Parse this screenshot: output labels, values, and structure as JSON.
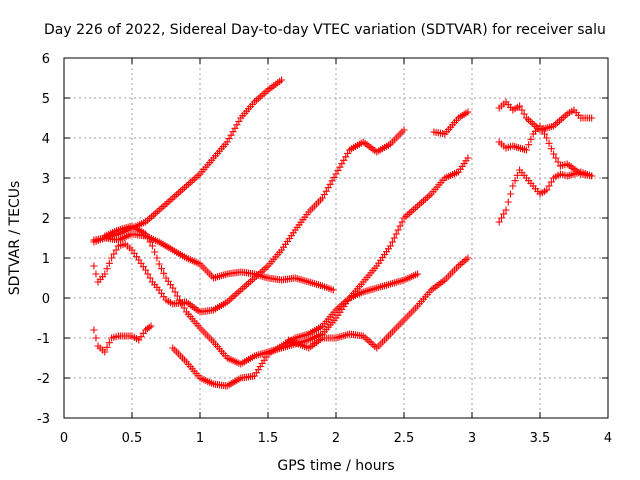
{
  "chart_data": {
    "type": "scatter",
    "title": "Day 226 of 2022, Sidereal Day-to-day VTEC variation (SDTVAR) for receiver salu",
    "xlabel": "GPS time / hours",
    "ylabel": "SDTVAR / TECUs",
    "xlim": [
      0,
      4
    ],
    "ylim": [
      -3,
      6
    ],
    "xticks": [
      "0",
      "0.5",
      "1",
      "1.5",
      "2",
      "2.5",
      "3",
      "3.5",
      "4"
    ],
    "yticks": [
      "-3",
      "-2",
      "-1",
      "0",
      "1",
      "2",
      "3",
      "4",
      "5",
      "6"
    ],
    "grid": true,
    "marker": "plus",
    "color": "#ff0000",
    "series": [
      {
        "points": [
          [
            0.22,
            1.4
          ],
          [
            0.3,
            1.5
          ],
          [
            0.4,
            1.6
          ],
          [
            0.5,
            1.75
          ],
          [
            0.6,
            1.9
          ],
          [
            0.7,
            2.2
          ],
          [
            0.8,
            2.5
          ],
          [
            0.9,
            2.8
          ],
          [
            1.0,
            3.1
          ],
          [
            1.1,
            3.5
          ],
          [
            1.2,
            3.9
          ],
          [
            1.3,
            4.5
          ],
          [
            1.4,
            4.9
          ],
          [
            1.5,
            5.2
          ],
          [
            1.6,
            5.45
          ]
        ]
      },
      {
        "points": [
          [
            0.22,
            1.45
          ],
          [
            0.3,
            1.5
          ],
          [
            0.4,
            1.45
          ],
          [
            0.5,
            1.6
          ],
          [
            0.6,
            1.55
          ],
          [
            0.7,
            1.4
          ],
          [
            0.8,
            1.2
          ],
          [
            0.9,
            1.0
          ],
          [
            1.0,
            0.85
          ],
          [
            1.1,
            0.5
          ],
          [
            1.2,
            0.6
          ],
          [
            1.3,
            0.65
          ],
          [
            1.4,
            0.6
          ],
          [
            1.5,
            0.5
          ],
          [
            1.6,
            0.45
          ],
          [
            1.7,
            0.5
          ],
          [
            1.8,
            0.4
          ],
          [
            1.9,
            0.3
          ],
          [
            1.98,
            0.2
          ]
        ]
      },
      {
        "points": [
          [
            0.22,
            0.8
          ],
          [
            0.25,
            0.4
          ],
          [
            0.3,
            0.6
          ],
          [
            0.35,
            1.0
          ],
          [
            0.4,
            1.3
          ],
          [
            0.45,
            1.35
          ],
          [
            0.5,
            1.2
          ],
          [
            0.55,
            0.95
          ],
          [
            0.6,
            0.7
          ],
          [
            0.65,
            0.4
          ],
          [
            0.7,
            0.2
          ],
          [
            0.75,
            -0.05
          ],
          [
            0.8,
            -0.15
          ],
          [
            0.9,
            -0.1
          ],
          [
            1.0,
            -0.35
          ],
          [
            1.1,
            -0.3
          ],
          [
            1.2,
            -0.1
          ],
          [
            1.3,
            0.2
          ],
          [
            1.4,
            0.5
          ],
          [
            1.5,
            0.8
          ],
          [
            1.6,
            1.2
          ],
          [
            1.7,
            1.7
          ],
          [
            1.8,
            2.15
          ],
          [
            1.9,
            2.5
          ],
          [
            2.0,
            3.1
          ],
          [
            2.1,
            3.7
          ],
          [
            2.2,
            3.9
          ],
          [
            2.3,
            3.65
          ],
          [
            2.4,
            3.85
          ],
          [
            2.5,
            4.2
          ]
        ]
      },
      {
        "points": [
          [
            0.3,
            1.55
          ],
          [
            0.4,
            1.7
          ],
          [
            0.5,
            1.8
          ],
          [
            0.6,
            1.6
          ],
          [
            0.65,
            1.3
          ],
          [
            0.7,
            0.85
          ],
          [
            0.75,
            0.5
          ],
          [
            0.8,
            0.25
          ],
          [
            0.85,
            -0.05
          ],
          [
            0.9,
            -0.35
          ],
          [
            1.0,
            -0.75
          ],
          [
            1.1,
            -1.1
          ],
          [
            1.2,
            -1.5
          ],
          [
            1.3,
            -1.65
          ],
          [
            1.4,
            -1.45
          ],
          [
            1.5,
            -1.35
          ],
          [
            1.6,
            -1.25
          ],
          [
            1.7,
            -1.15
          ],
          [
            1.8,
            -1.05
          ],
          [
            1.9,
            -0.9
          ],
          [
            2.0,
            -0.5
          ],
          [
            2.1,
            0.0
          ],
          [
            2.2,
            0.4
          ],
          [
            2.3,
            0.8
          ],
          [
            2.4,
            1.3
          ],
          [
            2.5,
            2.0
          ],
          [
            2.6,
            2.3
          ],
          [
            2.7,
            2.6
          ],
          [
            2.8,
            3.0
          ],
          [
            2.9,
            3.15
          ],
          [
            2.97,
            3.5
          ]
        ]
      },
      {
        "points": [
          [
            0.22,
            -0.8
          ],
          [
            0.25,
            -1.2
          ],
          [
            0.3,
            -1.35
          ],
          [
            0.35,
            -1.0
          ],
          [
            0.4,
            -0.95
          ],
          [
            0.5,
            -0.95
          ],
          [
            0.55,
            -1.05
          ],
          [
            0.6,
            -0.8
          ],
          [
            0.64,
            -0.7
          ]
        ]
      },
      {
        "points": [
          [
            0.8,
            -1.25
          ],
          [
            0.9,
            -1.6
          ],
          [
            1.0,
            -2.0
          ],
          [
            1.1,
            -2.15
          ],
          [
            1.2,
            -2.2
          ],
          [
            1.3,
            -2.0
          ],
          [
            1.4,
            -1.95
          ],
          [
            1.5,
            -1.4
          ],
          [
            1.6,
            -1.2
          ],
          [
            1.7,
            -1.0
          ],
          [
            1.8,
            -0.9
          ],
          [
            1.9,
            -0.7
          ],
          [
            2.0,
            -0.3
          ],
          [
            2.1,
            0.0
          ],
          [
            2.2,
            0.15
          ],
          [
            2.3,
            0.25
          ],
          [
            2.4,
            0.35
          ],
          [
            2.5,
            0.45
          ],
          [
            2.6,
            0.6
          ]
        ]
      },
      {
        "points": [
          [
            1.65,
            -1.05
          ],
          [
            1.8,
            -1.25
          ],
          [
            1.9,
            -1.0
          ],
          [
            2.0,
            -1.0
          ],
          [
            2.1,
            -0.9
          ],
          [
            2.2,
            -0.95
          ],
          [
            2.3,
            -1.25
          ],
          [
            2.4,
            -0.9
          ],
          [
            2.5,
            -0.55
          ],
          [
            2.6,
            -0.2
          ],
          [
            2.7,
            0.2
          ],
          [
            2.8,
            0.45
          ],
          [
            2.9,
            0.8
          ],
          [
            2.97,
            1.0
          ]
        ]
      },
      {
        "points": [
          [
            2.72,
            4.15
          ],
          [
            2.8,
            4.1
          ],
          [
            2.9,
            4.5
          ],
          [
            2.97,
            4.65
          ]
        ]
      },
      {
        "points": [
          [
            3.2,
            4.75
          ],
          [
            3.25,
            4.9
          ],
          [
            3.3,
            4.7
          ],
          [
            3.35,
            4.8
          ],
          [
            3.4,
            4.5
          ],
          [
            3.5,
            4.2
          ],
          [
            3.6,
            4.3
          ],
          [
            3.7,
            4.6
          ],
          [
            3.75,
            4.7
          ],
          [
            3.8,
            4.5
          ],
          [
            3.88,
            4.5
          ]
        ]
      },
      {
        "points": [
          [
            3.2,
            3.9
          ],
          [
            3.25,
            3.75
          ],
          [
            3.3,
            3.8
          ],
          [
            3.4,
            3.7
          ],
          [
            3.45,
            4.1
          ],
          [
            3.5,
            4.3
          ],
          [
            3.55,
            4.0
          ],
          [
            3.6,
            3.6
          ],
          [
            3.65,
            3.3
          ],
          [
            3.7,
            3.35
          ],
          [
            3.8,
            3.1
          ],
          [
            3.88,
            3.05
          ]
        ]
      },
      {
        "points": [
          [
            3.2,
            1.9
          ],
          [
            3.25,
            2.2
          ],
          [
            3.3,
            2.8
          ],
          [
            3.35,
            3.2
          ],
          [
            3.4,
            3.0
          ],
          [
            3.45,
            2.8
          ],
          [
            3.5,
            2.6
          ],
          [
            3.55,
            2.7
          ],
          [
            3.6,
            3.0
          ],
          [
            3.65,
            3.1
          ],
          [
            3.7,
            3.05
          ],
          [
            3.8,
            3.15
          ],
          [
            3.88,
            3.05
          ]
        ]
      }
    ]
  }
}
